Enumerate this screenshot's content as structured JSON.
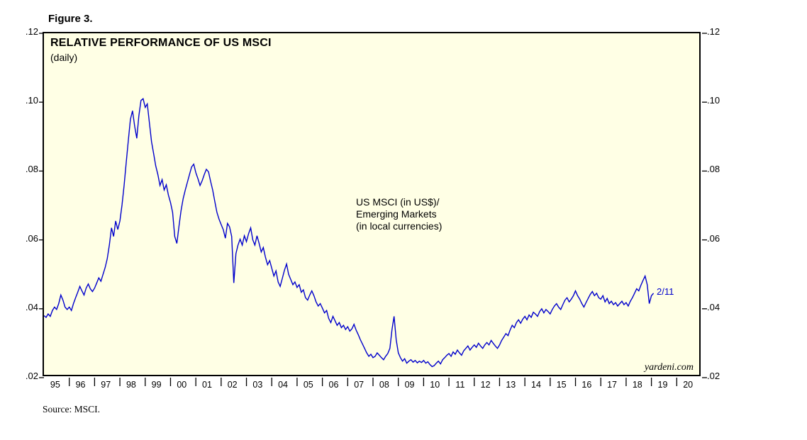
{
  "figure_label": "Figure 3.",
  "source_note": "Source: MSCI.",
  "watermark": "yardeni.com",
  "chart_data": {
    "type": "line",
    "title": "RELATIVE PERFORMANCE OF US MSCI",
    "subtitle": "(daily)",
    "series_label_lines": [
      "US MSCI (in US$)/",
      "Emerging Markets",
      "(in local currencies)"
    ],
    "annotation": "2/11",
    "x_tick_labels": [
      "95",
      "96",
      "97",
      "98",
      "99",
      "00",
      "01",
      "02",
      "03",
      "04",
      "05",
      "06",
      "07",
      "08",
      "09",
      "10",
      "11",
      "12",
      "13",
      "14",
      "15",
      "16",
      "17",
      "18",
      "19",
      "20"
    ],
    "y_ticks": [
      0.02,
      0.04,
      0.06,
      0.08,
      0.1,
      0.12
    ],
    "y_tick_labels": [
      ".02",
      ".04",
      ".06",
      ".08",
      ".10",
      ".12"
    ],
    "xlim": [
      1995,
      2021
    ],
    "ylim": [
      0.02,
      0.12
    ],
    "grid": false,
    "legend_position": "none",
    "line_color": "#0000CC",
    "plot_bg": "#FFFFE5",
    "series": [
      {
        "name": "US MSCI (in US$) / Emerging Markets (in local currencies)",
        "x_start": 1995.0,
        "x_step": 0.0833333,
        "values": [
          0.038,
          0.0375,
          0.0385,
          0.0378,
          0.0395,
          0.0405,
          0.0398,
          0.0415,
          0.044,
          0.0425,
          0.0405,
          0.0398,
          0.0405,
          0.0395,
          0.0415,
          0.0432,
          0.0448,
          0.0465,
          0.0452,
          0.044,
          0.046,
          0.0472,
          0.0458,
          0.045,
          0.046,
          0.0475,
          0.049,
          0.048,
          0.05,
          0.052,
          0.0545,
          0.0585,
          0.0635,
          0.061,
          0.0655,
          0.063,
          0.0655,
          0.0702,
          0.0758,
          0.0825,
          0.089,
          0.095,
          0.0975,
          0.093,
          0.0895,
          0.096,
          0.1005,
          0.101,
          0.0985,
          0.0995,
          0.094,
          0.0885,
          0.085,
          0.0815,
          0.079,
          0.0758,
          0.0775,
          0.0745,
          0.076,
          0.073,
          0.0708,
          0.068,
          0.061,
          0.059,
          0.064,
          0.0685,
          0.072,
          0.0745,
          0.0768,
          0.079,
          0.0812,
          0.082,
          0.0795,
          0.0778,
          0.0758,
          0.0772,
          0.079,
          0.0805,
          0.0798,
          0.077,
          0.0745,
          0.0712,
          0.068,
          0.066,
          0.0645,
          0.063,
          0.0605,
          0.0648,
          0.0638,
          0.061,
          0.0475,
          0.056,
          0.0585,
          0.0602,
          0.0585,
          0.0612,
          0.0595,
          0.0618,
          0.0635,
          0.06,
          0.0585,
          0.0612,
          0.059,
          0.0565,
          0.0578,
          0.055,
          0.0528,
          0.054,
          0.0518,
          0.0495,
          0.051,
          0.0478,
          0.0465,
          0.0488,
          0.0512,
          0.053,
          0.05,
          0.0485,
          0.047,
          0.0478,
          0.0462,
          0.047,
          0.0448,
          0.0455,
          0.0432,
          0.0425,
          0.044,
          0.0452,
          0.0438,
          0.042,
          0.0408,
          0.0415,
          0.0402,
          0.0388,
          0.0395,
          0.0372,
          0.036,
          0.0378,
          0.0365,
          0.0352,
          0.036,
          0.0345,
          0.0352,
          0.034,
          0.0348,
          0.0335,
          0.0342,
          0.0355,
          0.0338,
          0.0325,
          0.031,
          0.0298,
          0.0285,
          0.0272,
          0.0262,
          0.0268,
          0.0258,
          0.0262,
          0.0272,
          0.0265,
          0.0258,
          0.0252,
          0.0262,
          0.027,
          0.0285,
          0.034,
          0.0378,
          0.031,
          0.0272,
          0.0258,
          0.0248,
          0.0255,
          0.0242,
          0.0248,
          0.0252,
          0.0245,
          0.025,
          0.0243,
          0.0248,
          0.0244,
          0.025,
          0.0242,
          0.0246,
          0.0238,
          0.0232,
          0.0235,
          0.0242,
          0.0248,
          0.024,
          0.0252,
          0.0258,
          0.0265,
          0.027,
          0.0262,
          0.0275,
          0.0268,
          0.028,
          0.0272,
          0.0265,
          0.0278,
          0.0285,
          0.0292,
          0.028,
          0.0288,
          0.0295,
          0.0288,
          0.03,
          0.0292,
          0.0285,
          0.0295,
          0.0302,
          0.0295,
          0.0308,
          0.03,
          0.0292,
          0.0285,
          0.0295,
          0.0308,
          0.0318,
          0.0328,
          0.0322,
          0.0338,
          0.0352,
          0.0345,
          0.036,
          0.0368,
          0.0358,
          0.037,
          0.0378,
          0.0368,
          0.0382,
          0.0375,
          0.039,
          0.0385,
          0.0378,
          0.0392,
          0.04,
          0.0388,
          0.0398,
          0.0392,
          0.0385,
          0.0398,
          0.0408,
          0.0415,
          0.0405,
          0.0398,
          0.0412,
          0.0425,
          0.0432,
          0.042,
          0.0428,
          0.0438,
          0.0452,
          0.0438,
          0.0428,
          0.0415,
          0.0405,
          0.0418,
          0.043,
          0.0442,
          0.045,
          0.0438,
          0.0445,
          0.0432,
          0.0428,
          0.0438,
          0.042,
          0.043,
          0.0415,
          0.0422,
          0.0412,
          0.0418,
          0.0408,
          0.0415,
          0.0422,
          0.0412,
          0.0418,
          0.0408,
          0.0422,
          0.0432,
          0.0445,
          0.0458,
          0.0452,
          0.0468,
          0.0482,
          0.0495,
          0.047,
          0.0415,
          0.0438,
          0.0445
        ]
      }
    ]
  }
}
